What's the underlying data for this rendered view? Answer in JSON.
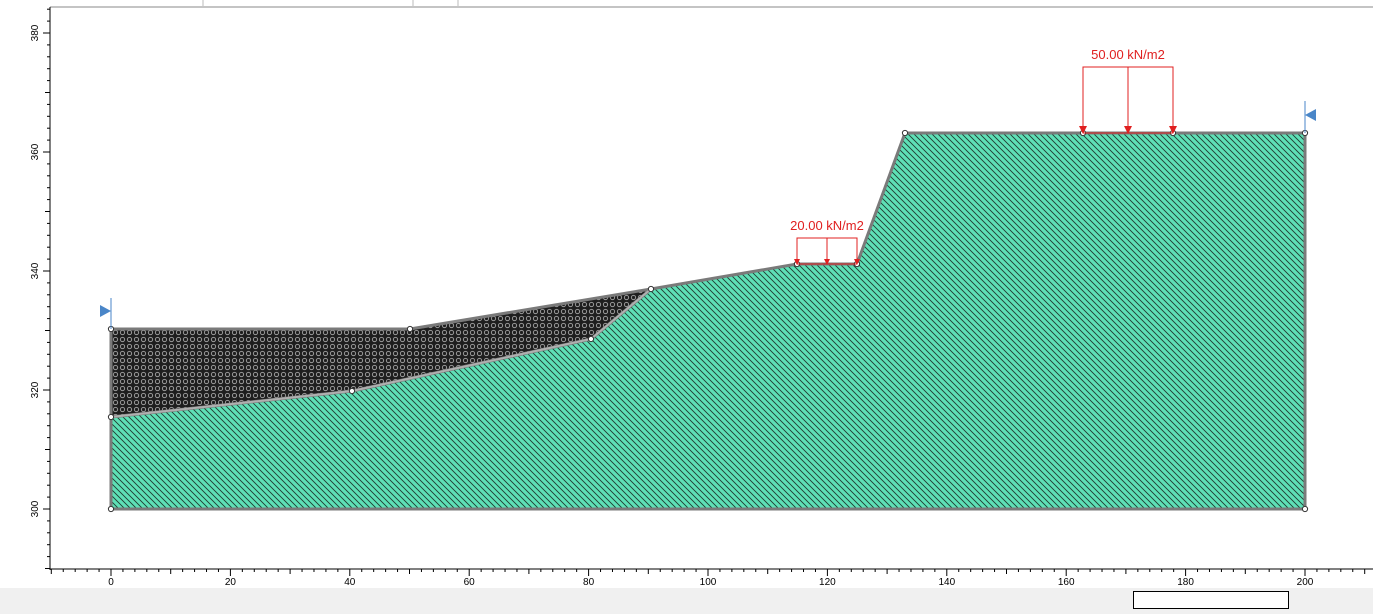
{
  "axes": {
    "x_ticks": [
      "0",
      "20",
      "40",
      "60",
      "80",
      "100",
      "120",
      "140",
      "160",
      "180",
      "200"
    ],
    "y_ticks": [
      "300",
      "320",
      "340",
      "360",
      "380"
    ]
  },
  "loads": [
    {
      "label": "20.00 kN/m2",
      "x_from": 115,
      "x_to": 125,
      "elevation": 341
    },
    {
      "label": "50.00 kN/m2",
      "x_from": 163,
      "x_to": 178,
      "elevation": 363
    }
  ],
  "materials": [
    {
      "name": "material-soil-main",
      "color": "#5ee0b6",
      "hatch": "#1a1a1a"
    },
    {
      "name": "material-soil-upper",
      "color": "#3a3a3a",
      "hatch": "#aaaaaa"
    }
  ],
  "colors": {
    "load": "#e02020",
    "boundary": "#7a7a7a",
    "marker": "#4a86c8"
  },
  "status": {
    "input_value": ""
  }
}
